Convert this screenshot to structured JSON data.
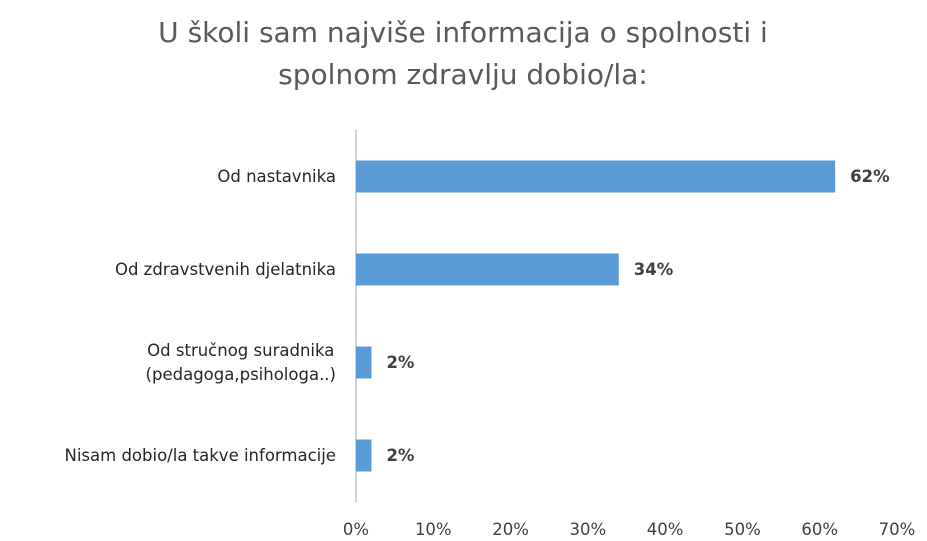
{
  "chart_data": {
    "type": "bar",
    "orientation": "horizontal",
    "title": "U školi sam najviše informacija o spolnosti i spolnom zdravlju dobio/la:",
    "categories": [
      "Od nastavnika",
      "Od zdravstvenih djelatnika",
      "Od stručnog suradnika\n(pedagoga,psihologa..)",
      "Nisam dobio/la takve informacije"
    ],
    "values": [
      62,
      34,
      2,
      2
    ],
    "value_labels": [
      "62%",
      "34%",
      "2%",
      "2%"
    ],
    "color": "#5b9bd5",
    "xlim": [
      0,
      70
    ],
    "xticks": [
      {
        "value": 0,
        "label": "0%"
      },
      {
        "value": 10,
        "label": "10%"
      },
      {
        "value": 20,
        "label": "20%"
      },
      {
        "value": 30,
        "label": "30%"
      },
      {
        "value": 40,
        "label": "40%"
      },
      {
        "value": 50,
        "label": "50%"
      },
      {
        "value": 60,
        "label": "60%"
      },
      {
        "value": 70,
        "label": "70%"
      }
    ],
    "grid": false
  }
}
